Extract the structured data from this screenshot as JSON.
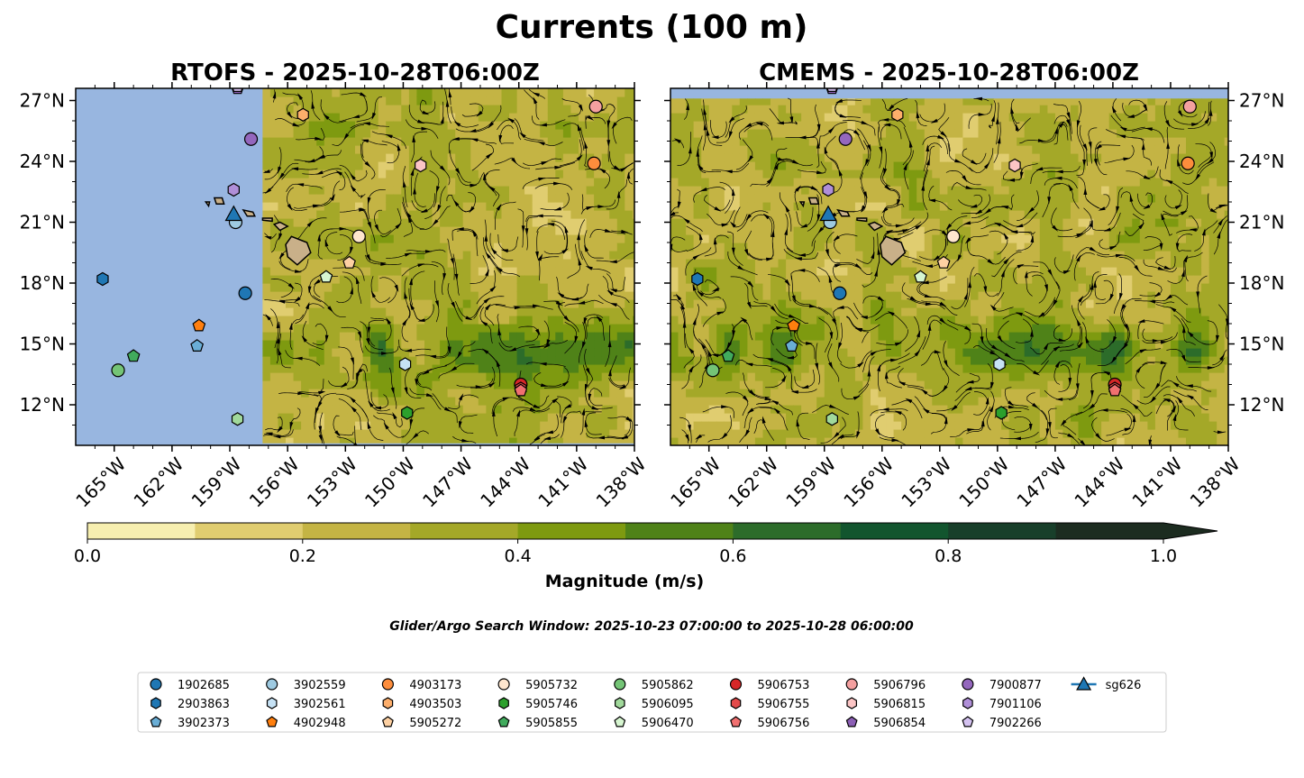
{
  "figure": {
    "title": "Currents (100 m)",
    "search_window": "Glider/Argo Search Window: 2025-10-23 07:00:00 to 2025-10-28 06:00:00"
  },
  "chart_data": [
    {
      "type": "map",
      "title": "RTOFS - 2025-10-28T06:00Z",
      "lon_range": [
        -167,
        -138
      ],
      "lat_range": [
        10,
        27.6
      ],
      "x_ticks": [
        "165°W",
        "162°W",
        "159°W",
        "156°W",
        "153°W",
        "150°W",
        "147°W",
        "144°W",
        "141°W",
        "138°W"
      ],
      "y_ticks": [
        "27°N",
        "24°N",
        "21°N",
        "18°N",
        "15°N",
        "12°N"
      ],
      "y_axis_side": "left",
      "model_domain_lon_min": -157.3,
      "colors": {
        "land": "#c9b089",
        "ocean_no_data": "#98b6e0"
      }
    },
    {
      "type": "map",
      "title": "CMEMS - 2025-10-28T06:00Z",
      "lon_range": [
        -167,
        -138
      ],
      "lat_range": [
        10,
        27.6
      ],
      "x_ticks": [
        "165°W",
        "162°W",
        "159°W",
        "156°W",
        "153°W",
        "150°W",
        "147°W",
        "144°W",
        "141°W",
        "138°W"
      ],
      "y_ticks": [
        "27°N",
        "24°N",
        "21°N",
        "18°N",
        "15°N",
        "12°N"
      ],
      "y_axis_side": "right",
      "colors": {
        "land": "#c9b089",
        "ocean_no_data": "#98b6e0"
      }
    }
  ],
  "colorbar": {
    "label": "Magnitude (m/s)",
    "ticks": [
      "0.0",
      "0.2",
      "0.4",
      "0.6",
      "0.8",
      "1.0"
    ],
    "range": [
      0,
      1.0
    ],
    "extend": "max",
    "levels": [
      0,
      0.1,
      0.2,
      0.3,
      0.4,
      0.5,
      0.6,
      0.7,
      0.8,
      0.9,
      1.0
    ],
    "colors": [
      "#f7efb0",
      "#e0cd70",
      "#c4b444",
      "#a4a828",
      "#7e9a10",
      "#4f8218",
      "#2c6c2a",
      "#12552e",
      "#183f2a",
      "#1c2c20"
    ]
  },
  "legend": {
    "columns": 10,
    "entries": [
      {
        "name": "1902685",
        "marker": "circle",
        "color": "#1f77b4"
      },
      {
        "name": "2903863",
        "marker": "hexagon",
        "color": "#1f77b4"
      },
      {
        "name": "3902373",
        "marker": "pentagon",
        "color": "#6aaed6"
      },
      {
        "name": "3902559",
        "marker": "circle",
        "color": "#9ecae1"
      },
      {
        "name": "3902561",
        "marker": "hexagon",
        "color": "#c6e2f5"
      },
      {
        "name": "4902948",
        "marker": "pentagon",
        "color": "#ff7f0e"
      },
      {
        "name": "4903173",
        "marker": "circle",
        "color": "#fd8d3c"
      },
      {
        "name": "4903503",
        "marker": "hexagon",
        "color": "#fdae6b"
      },
      {
        "name": "5905272",
        "marker": "pentagon",
        "color": "#fdd0a2"
      },
      {
        "name": "5905732",
        "marker": "circle",
        "color": "#fee6ce"
      },
      {
        "name": "5905746",
        "marker": "hexagon",
        "color": "#2ca02c"
      },
      {
        "name": "5905855",
        "marker": "pentagon",
        "color": "#41ab5d"
      },
      {
        "name": "5905862",
        "marker": "circle",
        "color": "#74c476"
      },
      {
        "name": "5906095",
        "marker": "hexagon",
        "color": "#a1d99b"
      },
      {
        "name": "5906470",
        "marker": "pentagon",
        "color": "#d6f5d0"
      },
      {
        "name": "5906753",
        "marker": "circle",
        "color": "#d62728"
      },
      {
        "name": "5906755",
        "marker": "hexagon",
        "color": "#e34a4a"
      },
      {
        "name": "5906756",
        "marker": "pentagon",
        "color": "#f07070"
      },
      {
        "name": "5906796",
        "marker": "circle",
        "color": "#f4a0a0"
      },
      {
        "name": "5906815",
        "marker": "hexagon",
        "color": "#fcc5c5"
      },
      {
        "name": "5906854",
        "marker": "pentagon",
        "color": "#8c5fb5"
      },
      {
        "name": "7900877",
        "marker": "circle",
        "color": "#9467bd"
      },
      {
        "name": "7901106",
        "marker": "hexagon",
        "color": "#b08fd8"
      },
      {
        "name": "7902266",
        "marker": "pentagon",
        "color": "#d4c2f0"
      },
      {
        "name": "sg626",
        "marker": "triangle-line",
        "color": "#1f77b4"
      }
    ]
  },
  "floats": [
    {
      "id": "1902685",
      "lon": -158.2,
      "lat": 17.5
    },
    {
      "id": "2903863",
      "lon": -165.6,
      "lat": 18.2
    },
    {
      "id": "3902373",
      "lon": -160.7,
      "lat": 14.9
    },
    {
      "id": "3902559",
      "lon": -158.7,
      "lat": 21.0
    },
    {
      "id": "3902561",
      "lon": -149.9,
      "lat": 14.0
    },
    {
      "id": "4902948",
      "lon": -160.6,
      "lat": 15.9
    },
    {
      "id": "4903173",
      "lon": -140.1,
      "lat": 23.9
    },
    {
      "id": "4903503",
      "lon": -155.2,
      "lat": 26.3
    },
    {
      "id": "5905272",
      "lon": -152.8,
      "lat": 19.0
    },
    {
      "id": "5905732",
      "lon": -152.3,
      "lat": 20.3
    },
    {
      "id": "5905746",
      "lon": -149.8,
      "lat": 11.6
    },
    {
      "id": "5905855",
      "lon": -164.0,
      "lat": 14.4
    },
    {
      "id": "5905862",
      "lon": -164.8,
      "lat": 13.7
    },
    {
      "id": "5906095",
      "lon": -158.6,
      "lat": 11.3
    },
    {
      "id": "5906470",
      "lon": -154.0,
      "lat": 18.3
    },
    {
      "id": "5906753",
      "lon": -143.9,
      "lat": 13.0
    },
    {
      "id": "5906755",
      "lon": -143.9,
      "lat": 12.8
    },
    {
      "id": "5906756",
      "lon": -143.9,
      "lat": 12.7
    },
    {
      "id": "5906796",
      "lon": -140.0,
      "lat": 26.7
    },
    {
      "id": "5906815",
      "lon": -149.1,
      "lat": 23.8
    },
    {
      "id": "5906854",
      "lon": -158.6,
      "lat": 27.6
    },
    {
      "id": "7900877",
      "lon": -157.9,
      "lat": 25.1
    },
    {
      "id": "7901106",
      "lon": -158.8,
      "lat": 22.6
    },
    {
      "id": "7902266",
      "lon": -158.6,
      "lat": 27.7
    },
    {
      "id": "sg626",
      "lon": -158.8,
      "lat": 21.4
    }
  ]
}
